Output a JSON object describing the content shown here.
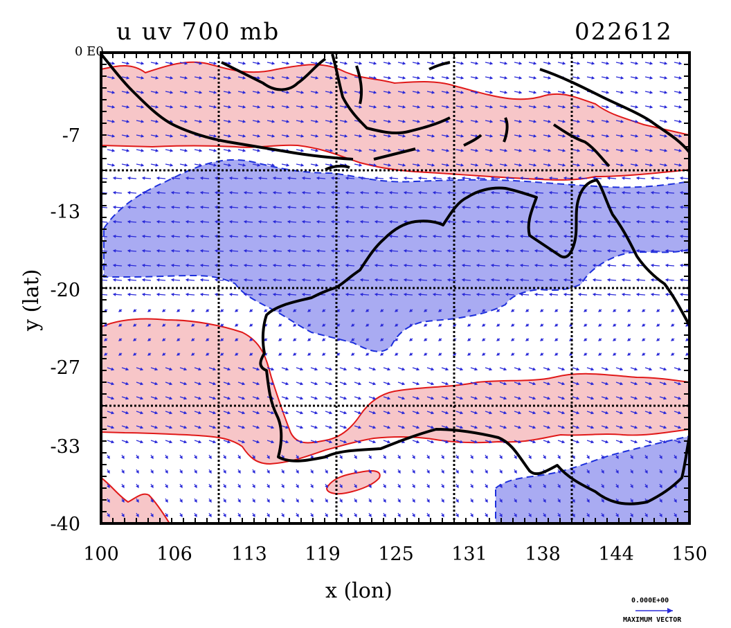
{
  "title": {
    "left": "u  uv 700 mb",
    "right": "022612"
  },
  "corner_label": "0 E0",
  "axes": {
    "xlabel": "x (lon)",
    "ylabel": "y (lat)",
    "xticks": [
      "100",
      "106",
      "113",
      "119",
      "125",
      "131",
      "138",
      "144",
      "150"
    ],
    "yticks": [
      "0",
      "-7",
      "-13",
      "-20",
      "-27",
      "-33",
      "-40"
    ],
    "xlim": [
      100,
      150
    ],
    "ylim": [
      -40,
      0
    ]
  },
  "gridlines": {
    "lon": [
      110,
      120,
      130,
      140
    ],
    "lat": [
      -10,
      -20,
      -30
    ]
  },
  "colors": {
    "positive_fill": "#f7c6c8",
    "positive_contour": "#e01818",
    "negative_fill": "#a9abf2",
    "negative_contour": "#1d2fdc",
    "vector": "#2a2ad8",
    "coast": "#000000"
  },
  "legend": {
    "value": "0.000E+00",
    "label": "MAXIMUM VECTOR"
  }
}
